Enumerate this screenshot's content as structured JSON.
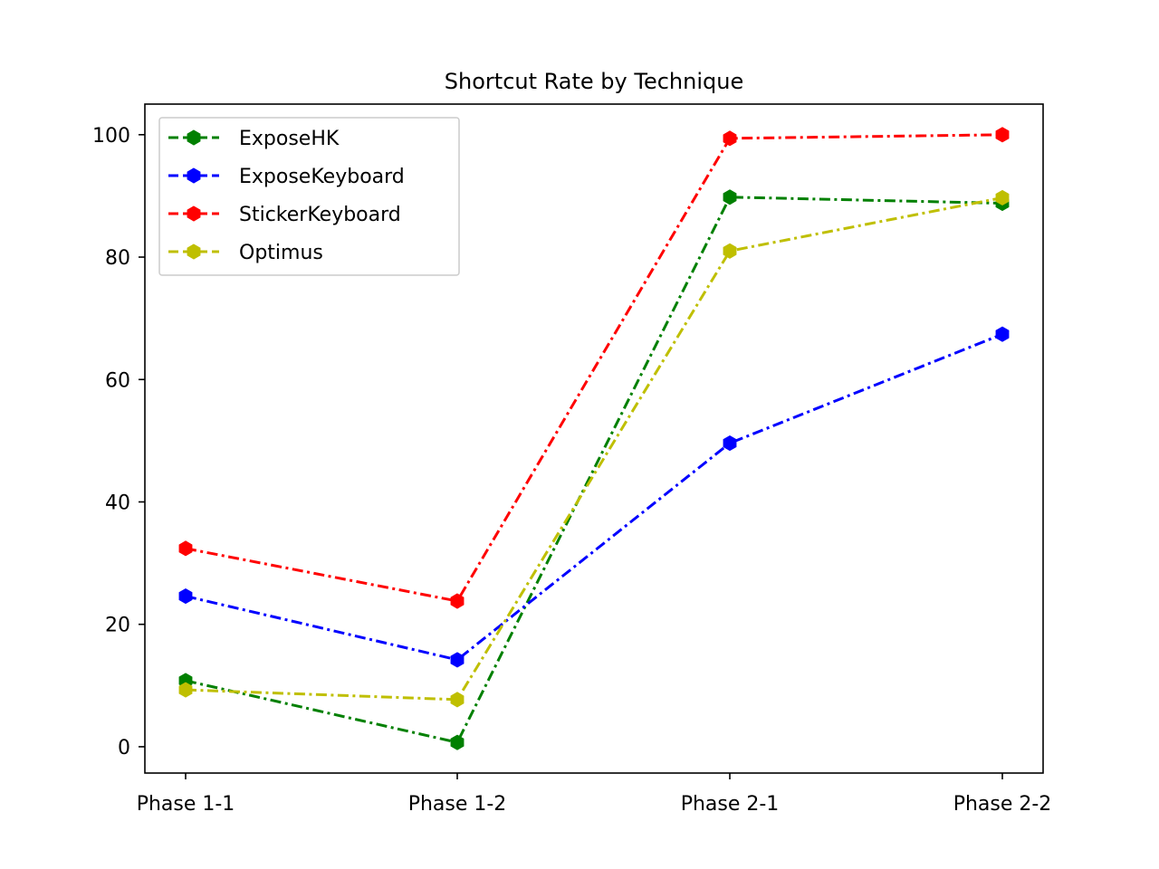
{
  "chart_data": {
    "type": "line",
    "title": "Shortcut Rate by Technique",
    "xlabel": "",
    "ylabel": "",
    "categories": [
      "Phase 1-1",
      "Phase 1-2",
      "Phase 2-1",
      "Phase 2-2"
    ],
    "ylim": [
      -4.3,
      105
    ],
    "yticks": [
      0,
      20,
      40,
      60,
      80,
      100
    ],
    "grid": false,
    "legend_position": "top-left",
    "series": [
      {
        "name": "ExposeHK",
        "color": "#008000",
        "values": [
          10.8,
          0.7,
          89.8,
          88.8
        ]
      },
      {
        "name": "ExposeKeyboard",
        "color": "#0000ff",
        "values": [
          24.6,
          14.2,
          49.6,
          67.4
        ]
      },
      {
        "name": "StickerKeyboard",
        "color": "#ff0000",
        "values": [
          32.4,
          23.8,
          99.4,
          100.0
        ]
      },
      {
        "name": "Optimus",
        "color": "#bfbf00",
        "values": [
          9.3,
          7.7,
          81.0,
          89.7
        ]
      }
    ]
  }
}
